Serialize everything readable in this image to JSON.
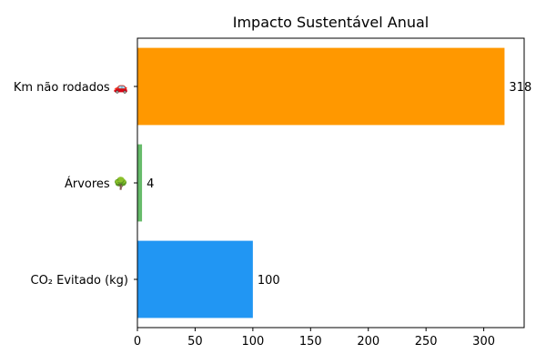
{
  "chart_data": {
    "type": "bar",
    "orientation": "horizontal",
    "title": "Impacto Sustentável Anual",
    "xlabel": "",
    "ylabel": "",
    "categories": [
      "CO₂ Evitado (kg)",
      "Árvores 🌳",
      "Km não rodados 🚗"
    ],
    "values": [
      100,
      4,
      318
    ],
    "colors": [
      "#2196F3",
      "#66BB6A",
      "#FF9800"
    ],
    "xlim": [
      0,
      335
    ],
    "xticks": [
      0,
      50,
      100,
      150,
      200,
      250,
      300
    ],
    "grid": false,
    "legend": "none"
  }
}
